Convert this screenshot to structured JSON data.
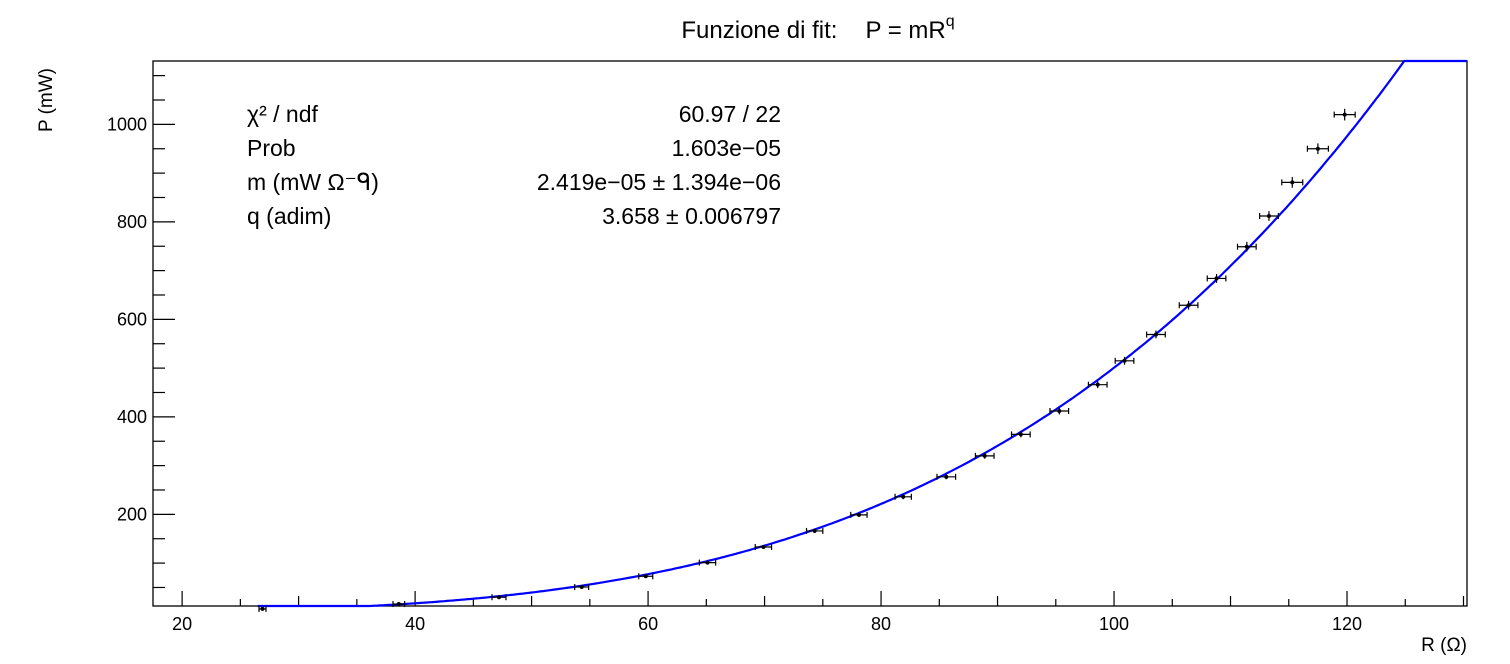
{
  "chart_data": {
    "type": "scatter",
    "title_prefix": "Funzione di fit:",
    "title_formula": "P = mR",
    "title_exponent": "q",
    "xlabel": "R (Ω)",
    "ylabel": "P (mW)",
    "xlim": [
      17.5,
      130.3
    ],
    "ylim": [
      12,
      1130
    ],
    "xticks": [
      20,
      40,
      60,
      80,
      100,
      120
    ],
    "yticks": [
      200,
      400,
      600,
      800,
      1000
    ],
    "grid": false,
    "fit": {
      "model": "power",
      "m": 2.419e-05,
      "q": 3.658,
      "color": "#0000ff"
    },
    "stats": [
      {
        "label": "χ² / ndf",
        "value": "60.97 / 22"
      },
      {
        "label": "Prob",
        "value": "1.603e−05"
      },
      {
        "label": "m (mW Ω⁻ᑫ)",
        "value": "2.419e−05 ± 1.394e−06"
      },
      {
        "label": "q (adim)",
        "value": "3.658 ± 0.006797"
      }
    ],
    "points": [
      {
        "x": 26.9,
        "y": 6,
        "xerr": 0.3,
        "yerr": 1
      },
      {
        "x": 38.6,
        "y": 16,
        "xerr": 0.5,
        "yerr": 1
      },
      {
        "x": 47.2,
        "y": 30,
        "xerr": 0.6,
        "yerr": 2
      },
      {
        "x": 54.3,
        "y": 51,
        "xerr": 0.6,
        "yerr": 2
      },
      {
        "x": 59.8,
        "y": 73,
        "xerr": 0.6,
        "yerr": 2
      },
      {
        "x": 65.1,
        "y": 101,
        "xerr": 0.7,
        "yerr": 3
      },
      {
        "x": 69.9,
        "y": 133,
        "xerr": 0.7,
        "yerr": 3
      },
      {
        "x": 74.3,
        "y": 166,
        "xerr": 0.7,
        "yerr": 4
      },
      {
        "x": 78.1,
        "y": 199,
        "xerr": 0.7,
        "yerr": 4
      },
      {
        "x": 81.9,
        "y": 236,
        "xerr": 0.7,
        "yerr": 5
      },
      {
        "x": 85.6,
        "y": 277,
        "xerr": 0.8,
        "yerr": 5
      },
      {
        "x": 88.9,
        "y": 320,
        "xerr": 0.8,
        "yerr": 6
      },
      {
        "x": 92.0,
        "y": 364,
        "xerr": 0.8,
        "yerr": 6
      },
      {
        "x": 95.3,
        "y": 412,
        "xerr": 0.8,
        "yerr": 7
      },
      {
        "x": 98.6,
        "y": 466,
        "xerr": 0.8,
        "yerr": 7
      },
      {
        "x": 100.9,
        "y": 515,
        "xerr": 0.8,
        "yerr": 8
      },
      {
        "x": 103.6,
        "y": 569,
        "xerr": 0.8,
        "yerr": 8
      },
      {
        "x": 106.4,
        "y": 629,
        "xerr": 0.8,
        "yerr": 9
      },
      {
        "x": 108.8,
        "y": 684,
        "xerr": 0.8,
        "yerr": 9
      },
      {
        "x": 111.4,
        "y": 749,
        "xerr": 0.8,
        "yerr": 10
      },
      {
        "x": 113.3,
        "y": 812,
        "xerr": 0.8,
        "yerr": 10
      },
      {
        "x": 115.3,
        "y": 881,
        "xerr": 0.9,
        "yerr": 11
      },
      {
        "x": 117.5,
        "y": 950,
        "xerr": 0.9,
        "yerr": 11
      },
      {
        "x": 119.8,
        "y": 1020,
        "xerr": 0.9,
        "yerr": 12
      }
    ]
  }
}
